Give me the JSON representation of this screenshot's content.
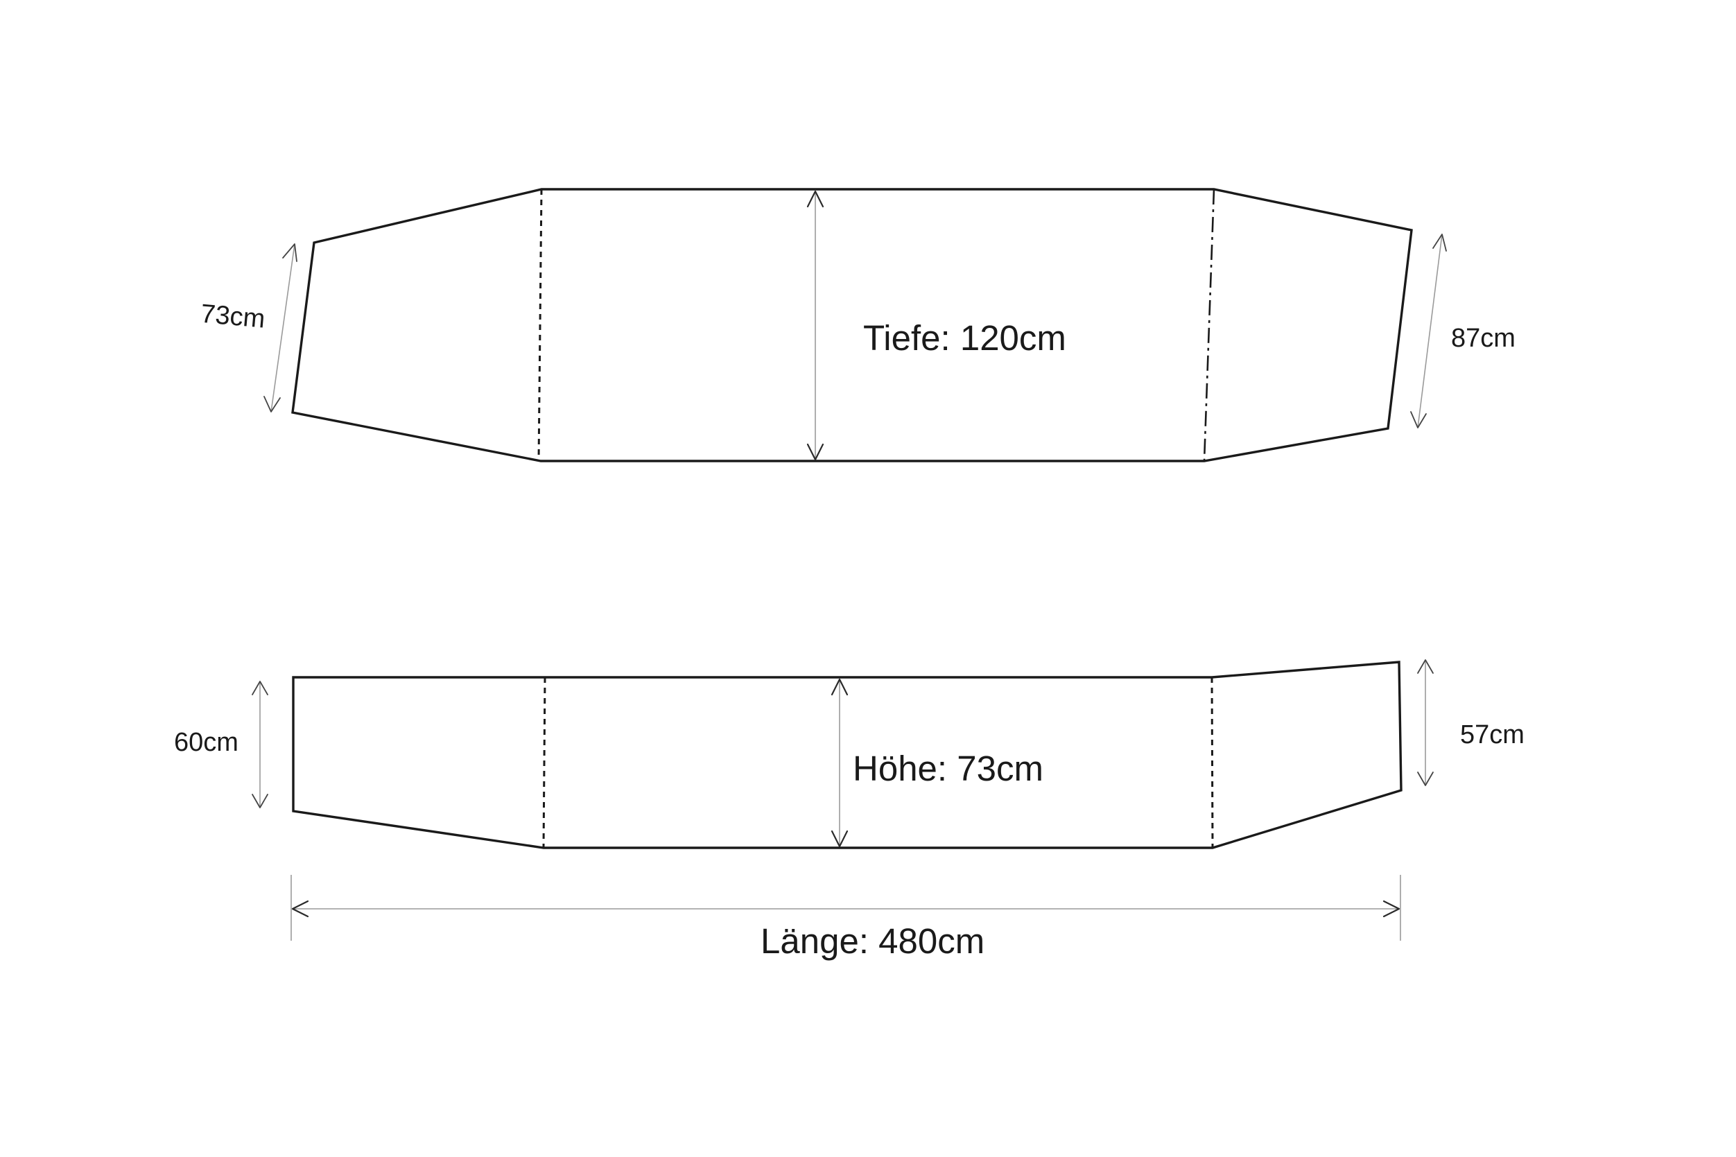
{
  "top_view": {
    "depth_label": "Tiefe: 120cm",
    "left_end_label": "73cm",
    "right_end_label": "87cm"
  },
  "side_view": {
    "height_label": "Höhe: 73cm",
    "left_end_label": "60cm",
    "right_end_label": "57cm"
  },
  "length_label": "Länge: 480cm"
}
